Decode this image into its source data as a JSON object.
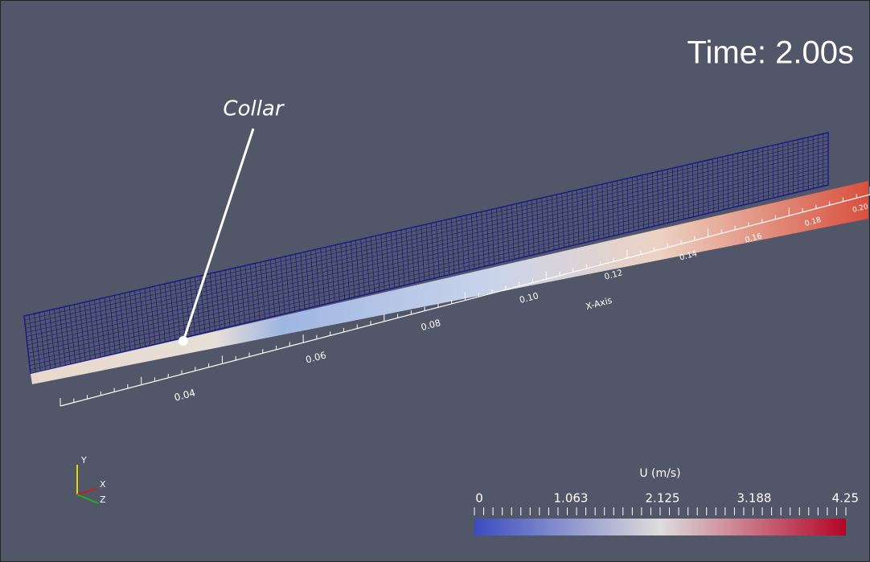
{
  "time_label": "Time: 2.00s",
  "annotation": "Collar",
  "x_axis": {
    "title": "X-Axis",
    "tick_labels": [
      "0.04",
      "0.06",
      "0.08",
      "0.10",
      "0.12",
      "0.14",
      "0.16",
      "0.18",
      "0.20"
    ]
  },
  "orientation_axes": [
    "Y",
    "X",
    "Z"
  ],
  "color_bar": {
    "title": "U (m/s)",
    "labels": [
      "0",
      "1.063",
      "2.125",
      "3.188",
      "4.25"
    ]
  }
}
